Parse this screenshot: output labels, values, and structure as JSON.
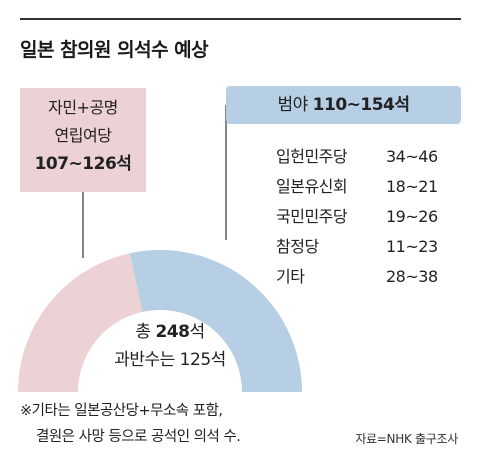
{
  "title": "일본 참의원 의석수 예상",
  "ruling": {
    "line1": "자민+공명",
    "line2": "연립여당",
    "seats": "107~126석",
    "color": "#ecd2d4"
  },
  "opposition": {
    "label": "범야",
    "seats": "110~154석",
    "color": "#b7cfe5",
    "parties": [
      {
        "name": "입헌민주당",
        "range": "34~46"
      },
      {
        "name": "일본유신회",
        "range": "18~21"
      },
      {
        "name": "국민민주당",
        "range": "19~26"
      },
      {
        "name": "참정당",
        "range": "11~23"
      },
      {
        "name": "기타",
        "range": "28~38"
      }
    ]
  },
  "center": {
    "total_prefix": "총 ",
    "total_value": "248",
    "total_suffix": "석",
    "majority": "과반수는 125석"
  },
  "footnote": {
    "line1": "※기타는 일본공산당+무소속 포함,",
    "line2": "결원은 사망 등으로 공석인 의석 수."
  },
  "source": "자료=NHK 출구조사",
  "chart_data": {
    "type": "pie",
    "style": "half-donut",
    "total": 248,
    "majority": 125,
    "slices": [
      {
        "label": "자민+공명 연립여당",
        "range": [
          107,
          126
        ],
        "value": 107,
        "color": "#ecd2d4"
      },
      {
        "label": "범야",
        "range": [
          110,
          154
        ],
        "value": 141,
        "color": "#b7cfe5"
      }
    ]
  }
}
